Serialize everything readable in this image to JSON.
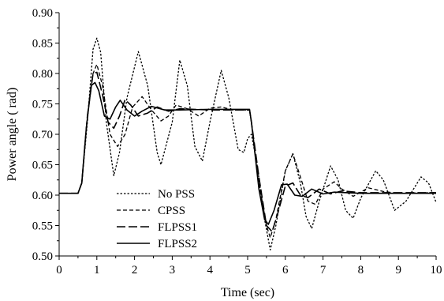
{
  "chart_data": {
    "type": "line",
    "title": "",
    "xlabel": "Time (sec)",
    "ylabel": "Power angle ( rad)",
    "xlim": [
      0,
      10
    ],
    "ylim": [
      0.5,
      0.9
    ],
    "x_ticks": [
      "0",
      "1",
      "2",
      "3",
      "4",
      "5",
      "6",
      "7",
      "8",
      "9",
      "10"
    ],
    "y_ticks": [
      "0.50",
      "0.55",
      "0.60",
      "0.65",
      "0.70",
      "0.75",
      "0.80",
      "0.85",
      "0.90"
    ],
    "grid": false,
    "legend_position": "lower-left",
    "series": [
      {
        "name": "No PSS",
        "style": "dotted",
        "points": [
          [
            0,
            0.603
          ],
          [
            0.5,
            0.603
          ],
          [
            0.6,
            0.62
          ],
          [
            0.75,
            0.72
          ],
          [
            0.9,
            0.84
          ],
          [
            1.0,
            0.858
          ],
          [
            1.1,
            0.835
          ],
          [
            1.25,
            0.72
          ],
          [
            1.45,
            0.632
          ],
          [
            1.6,
            0.67
          ],
          [
            1.8,
            0.76
          ],
          [
            2.1,
            0.836
          ],
          [
            2.35,
            0.78
          ],
          [
            2.6,
            0.67
          ],
          [
            2.7,
            0.65
          ],
          [
            3.0,
            0.72
          ],
          [
            3.2,
            0.822
          ],
          [
            3.4,
            0.78
          ],
          [
            3.6,
            0.68
          ],
          [
            3.8,
            0.656
          ],
          [
            4.0,
            0.72
          ],
          [
            4.3,
            0.805
          ],
          [
            4.5,
            0.76
          ],
          [
            4.75,
            0.675
          ],
          [
            4.9,
            0.67
          ],
          [
            5.0,
            0.693
          ],
          [
            5.1,
            0.7
          ],
          [
            5.25,
            0.65
          ],
          [
            5.45,
            0.56
          ],
          [
            5.6,
            0.51
          ],
          [
            5.75,
            0.55
          ],
          [
            6.0,
            0.64
          ],
          [
            6.2,
            0.668
          ],
          [
            6.4,
            0.62
          ],
          [
            6.55,
            0.565
          ],
          [
            6.7,
            0.545
          ],
          [
            6.9,
            0.59
          ],
          [
            7.2,
            0.648
          ],
          [
            7.4,
            0.625
          ],
          [
            7.6,
            0.575
          ],
          [
            7.8,
            0.562
          ],
          [
            8.0,
            0.595
          ],
          [
            8.4,
            0.64
          ],
          [
            8.6,
            0.625
          ],
          [
            8.9,
            0.575
          ],
          [
            9.2,
            0.59
          ],
          [
            9.6,
            0.63
          ],
          [
            9.8,
            0.62
          ],
          [
            10,
            0.588
          ]
        ]
      },
      {
        "name": "CPSS",
        "style": "dashed",
        "points": [
          [
            0,
            0.603
          ],
          [
            0.5,
            0.603
          ],
          [
            0.6,
            0.62
          ],
          [
            0.75,
            0.73
          ],
          [
            0.9,
            0.8
          ],
          [
            1.0,
            0.815
          ],
          [
            1.15,
            0.78
          ],
          [
            1.35,
            0.7
          ],
          [
            1.55,
            0.68
          ],
          [
            1.75,
            0.7
          ],
          [
            1.95,
            0.745
          ],
          [
            2.2,
            0.762
          ],
          [
            2.45,
            0.74
          ],
          [
            2.7,
            0.722
          ],
          [
            2.9,
            0.73
          ],
          [
            3.1,
            0.748
          ],
          [
            3.4,
            0.742
          ],
          [
            3.7,
            0.73
          ],
          [
            4.0,
            0.743
          ],
          [
            4.3,
            0.745
          ],
          [
            4.6,
            0.74
          ],
          [
            5.05,
            0.74
          ],
          [
            5.1,
            0.72
          ],
          [
            5.3,
            0.62
          ],
          [
            5.5,
            0.55
          ],
          [
            5.6,
            0.53
          ],
          [
            5.75,
            0.56
          ],
          [
            6.0,
            0.64
          ],
          [
            6.2,
            0.668
          ],
          [
            6.4,
            0.63
          ],
          [
            6.6,
            0.59
          ],
          [
            6.8,
            0.585
          ],
          [
            7.0,
            0.61
          ],
          [
            7.3,
            0.622
          ],
          [
            7.5,
            0.61
          ],
          [
            7.8,
            0.598
          ],
          [
            8.2,
            0.612
          ],
          [
            8.6,
            0.606
          ],
          [
            9.0,
            0.603
          ],
          [
            10,
            0.604
          ]
        ]
      },
      {
        "name": "FLPSS1",
        "style": "longdash",
        "points": [
          [
            0,
            0.603
          ],
          [
            0.5,
            0.603
          ],
          [
            0.6,
            0.62
          ],
          [
            0.75,
            0.73
          ],
          [
            0.9,
            0.8
          ],
          [
            1.0,
            0.802
          ],
          [
            1.15,
            0.765
          ],
          [
            1.3,
            0.72
          ],
          [
            1.45,
            0.71
          ],
          [
            1.6,
            0.73
          ],
          [
            1.75,
            0.757
          ],
          [
            1.9,
            0.748
          ],
          [
            2.1,
            0.73
          ],
          [
            2.35,
            0.735
          ],
          [
            2.6,
            0.745
          ],
          [
            2.9,
            0.738
          ],
          [
            3.2,
            0.742
          ],
          [
            4.0,
            0.74
          ],
          [
            5.05,
            0.74
          ],
          [
            5.1,
            0.72
          ],
          [
            5.3,
            0.63
          ],
          [
            5.5,
            0.55
          ],
          [
            5.65,
            0.54
          ],
          [
            5.8,
            0.57
          ],
          [
            6.0,
            0.615
          ],
          [
            6.2,
            0.62
          ],
          [
            6.4,
            0.6
          ],
          [
            6.6,
            0.596
          ],
          [
            6.9,
            0.61
          ],
          [
            7.2,
            0.602
          ],
          [
            7.5,
            0.607
          ],
          [
            8.0,
            0.604
          ],
          [
            10,
            0.604
          ]
        ]
      },
      {
        "name": "FLPSS2",
        "style": "solid",
        "points": [
          [
            0,
            0.603
          ],
          [
            0.5,
            0.603
          ],
          [
            0.6,
            0.62
          ],
          [
            0.72,
            0.71
          ],
          [
            0.85,
            0.78
          ],
          [
            0.95,
            0.785
          ],
          [
            1.05,
            0.772
          ],
          [
            1.2,
            0.73
          ],
          [
            1.35,
            0.725
          ],
          [
            1.5,
            0.745
          ],
          [
            1.62,
            0.756
          ],
          [
            1.8,
            0.74
          ],
          [
            2.0,
            0.73
          ],
          [
            2.2,
            0.738
          ],
          [
            2.45,
            0.746
          ],
          [
            2.8,
            0.74
          ],
          [
            3.2,
            0.74
          ],
          [
            4.0,
            0.741
          ],
          [
            5.05,
            0.741
          ],
          [
            5.1,
            0.72
          ],
          [
            5.3,
            0.61
          ],
          [
            5.45,
            0.56
          ],
          [
            5.55,
            0.552
          ],
          [
            5.7,
            0.575
          ],
          [
            5.9,
            0.617
          ],
          [
            6.05,
            0.618
          ],
          [
            6.25,
            0.6
          ],
          [
            6.45,
            0.598
          ],
          [
            6.7,
            0.61
          ],
          [
            7.0,
            0.602
          ],
          [
            7.3,
            0.605
          ],
          [
            8.0,
            0.603
          ],
          [
            10,
            0.603
          ]
        ]
      }
    ]
  }
}
